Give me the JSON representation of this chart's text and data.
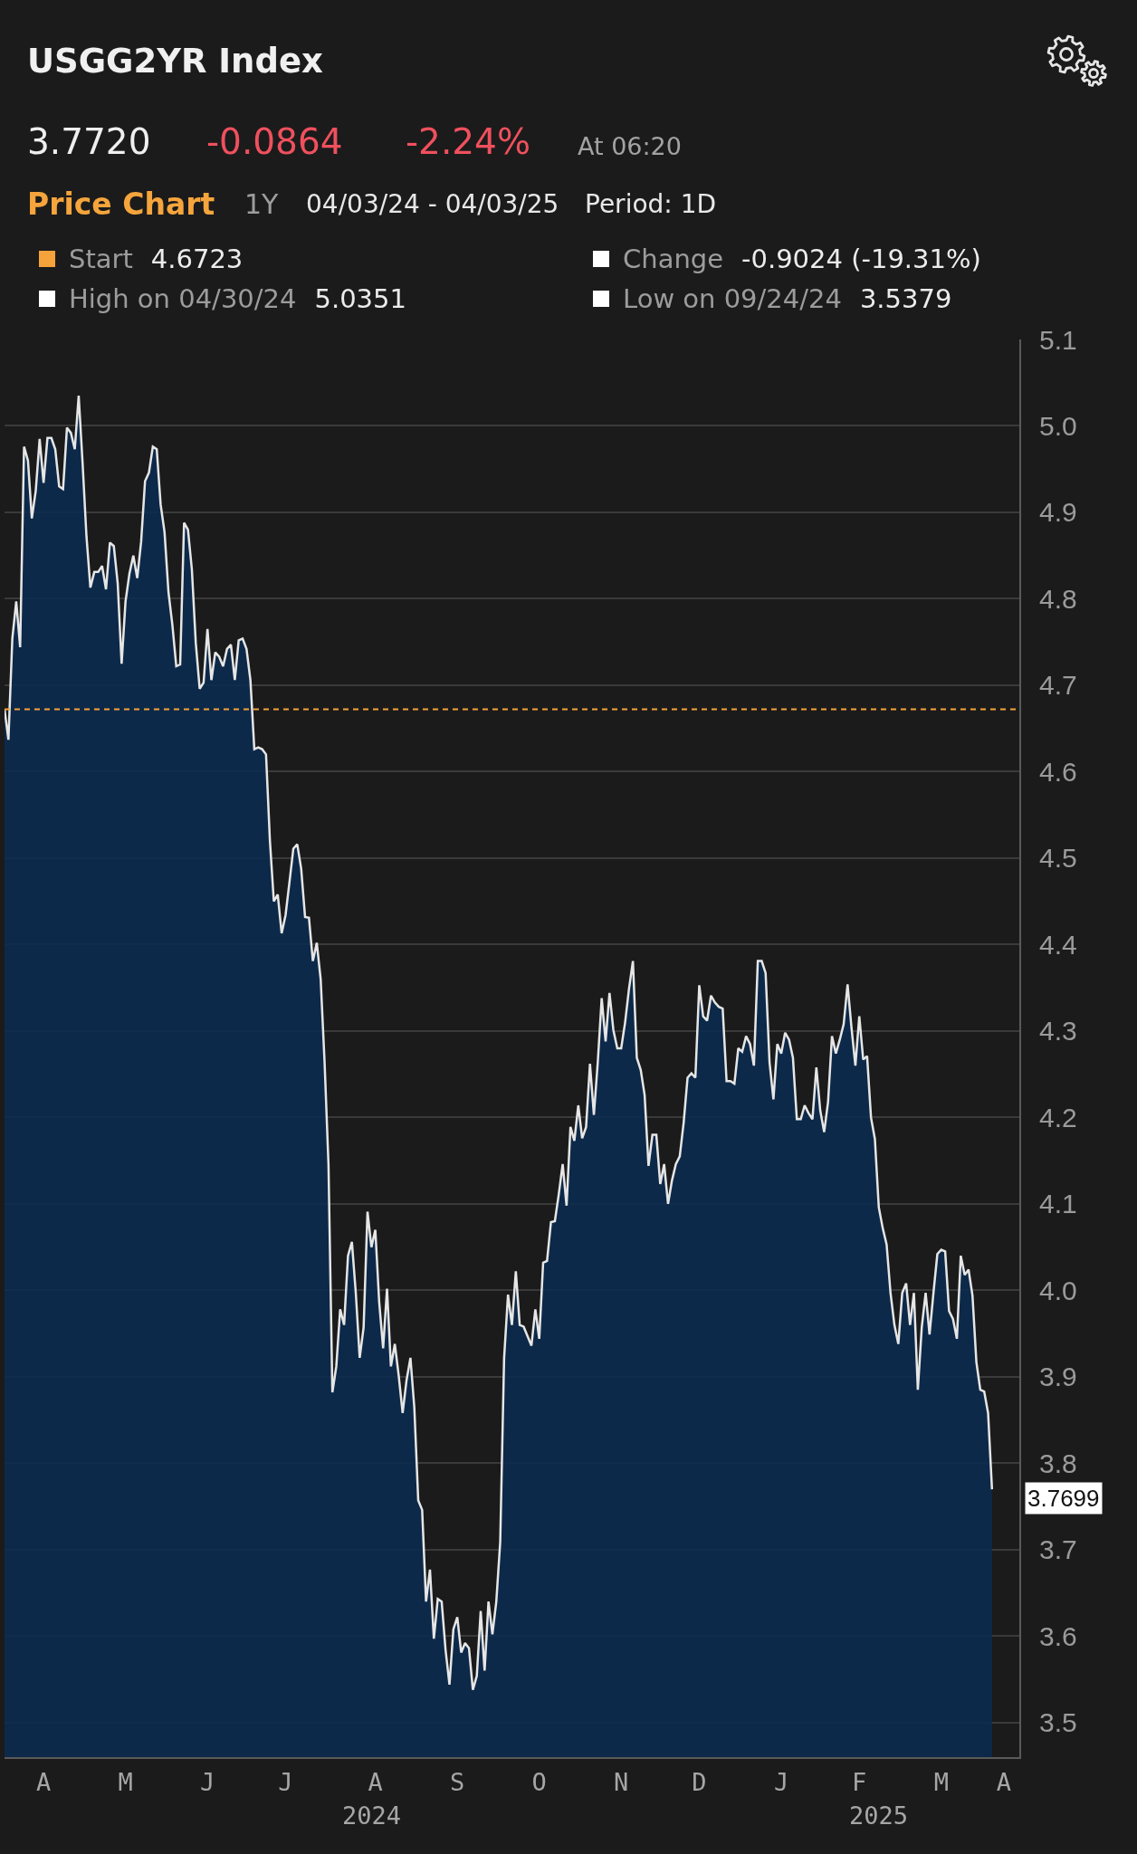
{
  "chart_data": {
    "type": "area",
    "title": "USGG2YR Index",
    "annotations": [
      "3.7720",
      "-0.0864",
      "-2.24%",
      "At 06:20",
      "Price Chart",
      "1Y",
      "04/03/24 - 04/03/25",
      "Period: 1D",
      "4.6723",
      "Change",
      "-0.9024 (-19.31%)",
      "High on 04/30/24",
      "5.0351",
      "Low on 09/24/24",
      "3.5379",
      "3.7699"
    ],
    "categories": [
      null,
      null,
      null,
      null,
      null,
      null,
      null,
      null,
      null,
      null,
      "A",
      null,
      null,
      null,
      null,
      null,
      null,
      null,
      null,
      null,
      null,
      null,
      null,
      null,
      null,
      null,
      null,
      null,
      null,
      null,
      null,
      "M",
      null,
      null,
      null,
      null,
      null,
      null,
      null,
      null,
      null,
      null,
      null,
      null,
      null,
      null,
      null,
      null,
      null,
      null,
      null,
      null,
      "J",
      null,
      null,
      null,
      null,
      null,
      null,
      null,
      null,
      null,
      null,
      null,
      null,
      null,
      null,
      null,
      null,
      null,
      null,
      null,
      "J",
      null,
      null,
      null,
      null,
      null,
      null,
      null,
      null,
      null,
      null,
      null,
      null,
      null,
      null,
      null,
      null,
      null,
      null,
      null,
      null,
      null,
      null,
      "A",
      null,
      null,
      null,
      null,
      null,
      null,
      null,
      null,
      null,
      null,
      null,
      null,
      null,
      null,
      null,
      null,
      null,
      null,
      null,
      null,
      "S",
      null,
      null,
      null,
      null,
      null,
      null,
      null,
      null,
      null,
      null,
      null,
      null,
      null,
      null,
      null,
      null,
      null,
      null,
      null,
      null,
      "O",
      null,
      null,
      null,
      null,
      null,
      null,
      null,
      null,
      null,
      null,
      null,
      null,
      null,
      null,
      null,
      null,
      null,
      null,
      null,
      null,
      "N",
      null,
      null,
      null,
      null,
      null,
      null,
      null,
      null,
      null,
      null,
      null,
      null,
      null,
      null,
      null,
      null,
      null,
      null,
      null,
      "D",
      null,
      null,
      null,
      null,
      null,
      null,
      null,
      null,
      null,
      null,
      null,
      null,
      null,
      null,
      null,
      null,
      null,
      null,
      null,
      null,
      "J",
      null,
      null,
      null,
      null,
      null,
      null,
      null,
      null,
      null,
      null,
      null,
      null,
      null,
      null,
      null,
      null,
      null,
      null,
      null,
      "F",
      null,
      null,
      null,
      null,
      null,
      null,
      null,
      null,
      null,
      null,
      null,
      null,
      null,
      null,
      null,
      null,
      null,
      null,
      null,
      null,
      "M",
      null,
      null,
      null,
      null,
      null,
      null,
      null,
      null,
      null,
      null,
      null,
      null,
      null,
      null,
      null,
      "A",
      null,
      null,
      null,
      null
    ],
    "values": [
      4.6723,
      4.637,
      4.754,
      4.797,
      4.744,
      4.976,
      4.96,
      4.893,
      4.925,
      4.985,
      4.934,
      4.986,
      4.986,
      4.973,
      4.93,
      4.927,
      4.998,
      4.992,
      4.973,
      5.0351,
      4.957,
      4.872,
      4.813,
      4.831,
      4.831,
      4.838,
      4.811,
      4.865,
      4.861,
      4.818,
      4.725,
      4.797,
      4.829,
      4.85,
      4.824,
      4.866,
      4.936,
      4.946,
      4.976,
      4.973,
      4.909,
      4.877,
      4.808,
      4.77,
      4.722,
      4.724,
      4.888,
      4.88,
      4.834,
      4.749,
      4.696,
      4.703,
      4.765,
      4.706,
      4.738,
      4.733,
      4.722,
      4.742,
      4.747,
      4.706,
      4.752,
      4.754,
      4.742,
      4.706,
      4.626,
      4.628,
      4.626,
      4.62,
      4.52,
      4.45,
      4.458,
      4.413,
      4.434,
      4.472,
      4.511,
      4.516,
      4.488,
      4.432,
      4.431,
      4.381,
      4.402,
      4.36,
      4.264,
      4.146,
      3.882,
      3.912,
      3.978,
      3.96,
      4.04,
      4.056,
      3.997,
      3.922,
      3.957,
      4.091,
      4.05,
      4.07,
      3.986,
      3.933,
      4.002,
      3.912,
      3.938,
      3.901,
      3.858,
      3.896,
      3.922,
      3.864,
      3.757,
      3.746,
      3.64,
      3.677,
      3.597,
      3.643,
      3.64,
      3.584,
      3.544,
      3.608,
      3.622,
      3.581,
      3.592,
      3.586,
      3.5379,
      3.554,
      3.629,
      3.56,
      3.64,
      3.602,
      3.64,
      3.709,
      3.922,
      3.995,
      3.96,
      4.022,
      3.96,
      3.958,
      3.947,
      3.936,
      3.978,
      3.944,
      4.032,
      4.034,
      4.079,
      4.08,
      4.111,
      4.146,
      4.098,
      4.189,
      4.173,
      4.214,
      4.176,
      4.189,
      4.262,
      4.203,
      4.264,
      4.338,
      4.288,
      4.344,
      4.301,
      4.28,
      4.28,
      4.31,
      4.349,
      4.381,
      4.269,
      4.255,
      4.226,
      4.144,
      4.18,
      4.18,
      4.123,
      4.146,
      4.1,
      4.127,
      4.146,
      4.155,
      4.194,
      4.246,
      4.251,
      4.246,
      4.353,
      4.317,
      4.312,
      4.341,
      4.333,
      4.328,
      4.326,
      4.242,
      4.242,
      4.239,
      4.28,
      4.276,
      4.294,
      4.285,
      4.26,
      4.381,
      4.381,
      4.367,
      4.264,
      4.221,
      4.285,
      4.274,
      4.298,
      4.29,
      4.269,
      4.198,
      4.198,
      4.214,
      4.205,
      4.198,
      4.258,
      4.208,
      4.183,
      4.218,
      4.294,
      4.274,
      4.29,
      4.308,
      4.354,
      4.304,
      4.26,
      4.317,
      4.267,
      4.271,
      4.2,
      4.175,
      4.096,
      4.072,
      4.053,
      3.997,
      3.96,
      3.938,
      3.997,
      4.008,
      3.96,
      3.997,
      3.885,
      3.957,
      3.997,
      3.949,
      3.997,
      4.042,
      4.047,
      4.045,
      3.976,
      3.967,
      3.944,
      4.04,
      4.018,
      4.024,
      3.994,
      3.917,
      3.885,
      3.883,
      3.858,
      3.7699,
      null,
      null,
      null,
      null,
      null,
      null,
      null
    ],
    "color": "#0b2b50",
    "x2lim": [
      "2024-04-03",
      "2025-04-14"
    ],
    "x2ticks": [
      {
        "value": "2024-08-17",
        "label": "2024"
      },
      {
        "value": "2025-02-21",
        "label": "2025"
      }
    ],
    "ylim": [
      3.46,
      5.1
    ],
    "yticks": [
      3.5,
      3.6,
      3.7,
      3.8,
      3.9,
      {
        "value": 4,
        "label": "4.0"
      },
      4.1,
      4.2,
      4.3,
      4.4,
      4.5,
      4.6,
      4.7,
      4.8,
      4.9,
      {
        "value": 5,
        "label": "5.0"
      },
      5.1
    ],
    "ref_lines": [
      {
        "axis": "y",
        "value": 4.6723,
        "label": "Start",
        "color": "#f5a33a",
        "line_style": "dashed"
      }
    ],
    "grid": "y"
  }
}
